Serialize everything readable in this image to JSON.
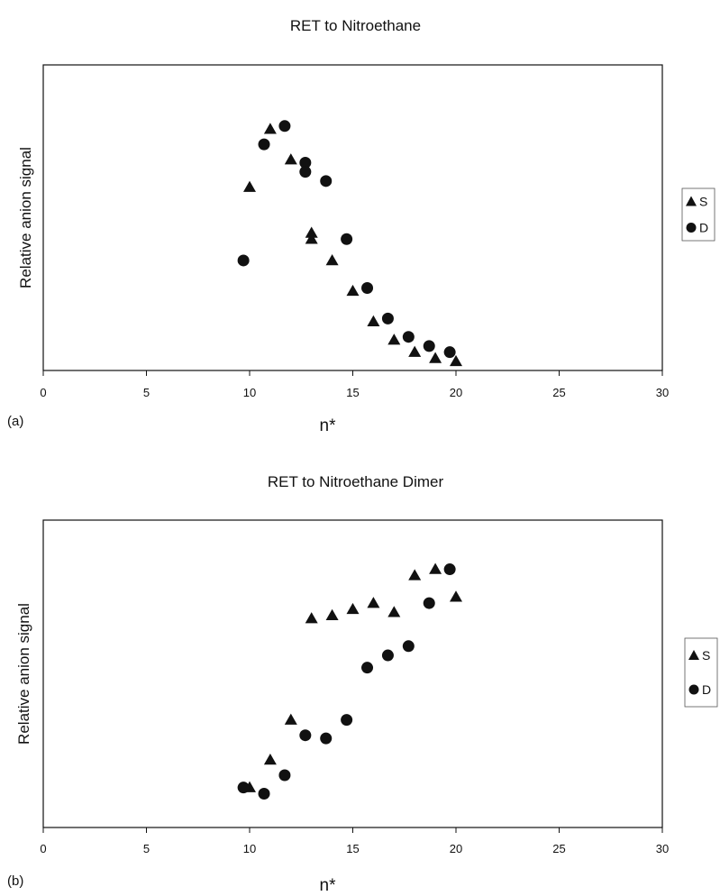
{
  "chart_data": [
    {
      "type": "scatter",
      "panel_label": "(a)",
      "title": "RET to Nitroethane",
      "xlabel": "n*",
      "ylabel": "Relative anion signal",
      "xlim": [
        0,
        30
      ],
      "ylim": [
        0,
        1
      ],
      "xticks": [
        0,
        5,
        10,
        15,
        20,
        25,
        30
      ],
      "grid": false,
      "legend_position": "right",
      "series": [
        {
          "name": "S",
          "marker": "triangle",
          "color": "#111111",
          "x": [
            10,
            11,
            12,
            13,
            13,
            14,
            15,
            16,
            17,
            18,
            19,
            20
          ],
          "y": [
            0.6,
            0.79,
            0.69,
            0.45,
            0.43,
            0.36,
            0.26,
            0.16,
            0.1,
            0.06,
            0.04,
            0.03
          ]
        },
        {
          "name": "D",
          "marker": "circle",
          "color": "#111111",
          "x": [
            9.7,
            10.7,
            11.7,
            12.7,
            12.7,
            13.7,
            14.7,
            15.7,
            16.7,
            17.7,
            18.7,
            19.7
          ],
          "y": [
            0.36,
            0.74,
            0.8,
            0.68,
            0.65,
            0.62,
            0.43,
            0.27,
            0.17,
            0.11,
            0.08,
            0.06
          ]
        }
      ]
    },
    {
      "type": "scatter",
      "panel_label": "(b)",
      "title": "RET to Nitroethane Dimer",
      "xlabel": "n*",
      "ylabel": "Relative anion signal",
      "xlim": [
        0,
        30
      ],
      "ylim": [
        0,
        1
      ],
      "xticks": [
        0,
        5,
        10,
        15,
        20,
        25,
        30
      ],
      "grid": false,
      "legend_position": "right",
      "series": [
        {
          "name": "S",
          "marker": "triangle",
          "color": "#111111",
          "x": [
            10,
            11,
            12,
            13,
            14,
            15,
            16,
            17,
            18,
            19,
            20
          ],
          "y": [
            0.13,
            0.22,
            0.35,
            0.68,
            0.69,
            0.71,
            0.73,
            0.7,
            0.82,
            0.84,
            0.75
          ]
        },
        {
          "name": "D",
          "marker": "circle",
          "color": "#111111",
          "x": [
            9.7,
            10.7,
            11.7,
            12.7,
            13.7,
            14.7,
            15.7,
            16.7,
            17.7,
            18.7,
            19.7
          ],
          "y": [
            0.13,
            0.11,
            0.17,
            0.3,
            0.29,
            0.35,
            0.52,
            0.56,
            0.59,
            0.73,
            0.84
          ]
        }
      ]
    }
  ]
}
